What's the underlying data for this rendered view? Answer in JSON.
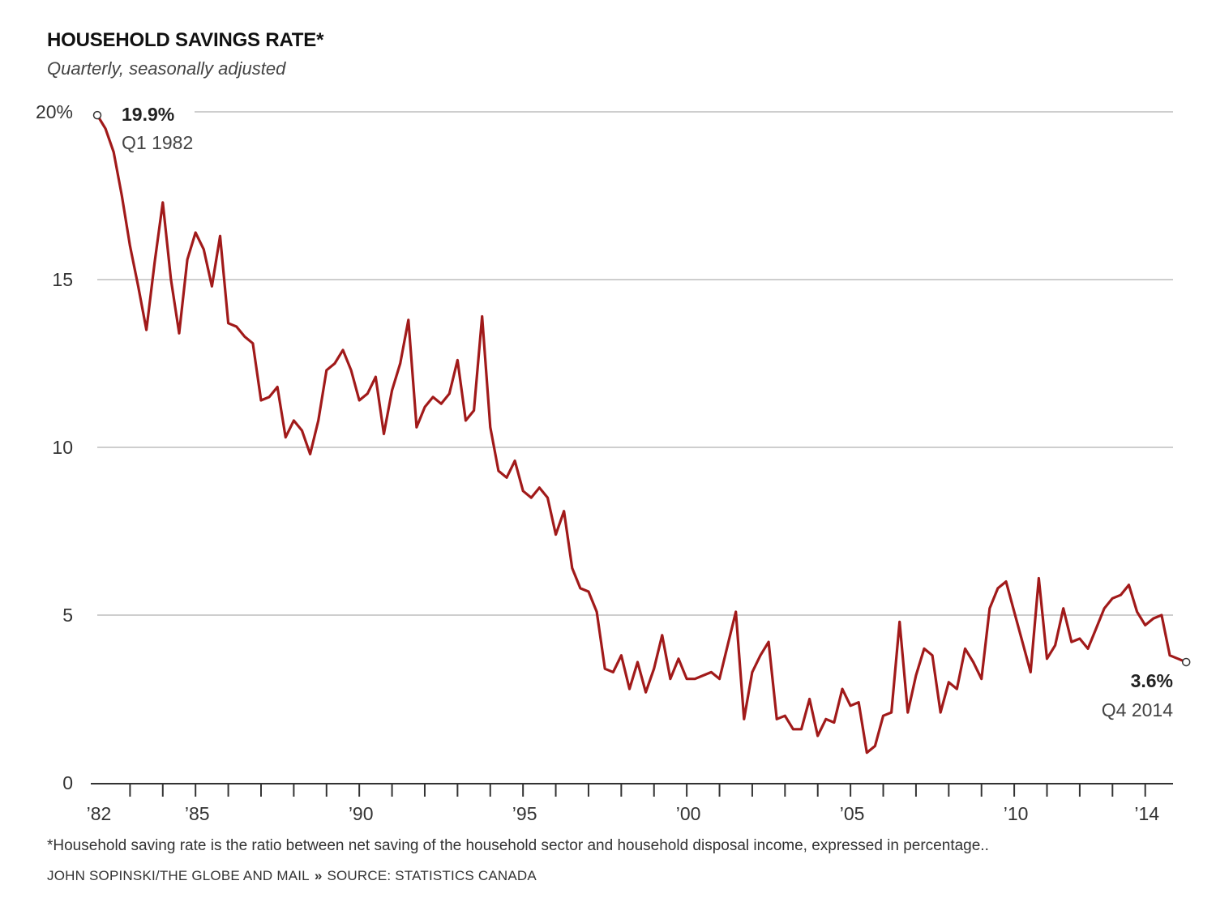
{
  "header": {
    "title": "HOUSEHOLD SAVINGS RATE*",
    "subtitle": "Quarterly, seasonally adjusted"
  },
  "footer": {
    "footnote": "*Household saving rate is the ratio between net saving of the household sector and household disposal income, expressed in percentage..",
    "credit": "JOHN SOPINSKI/THE GLOBE AND MAIL",
    "separator": "»",
    "source": "SOURCE: STATISTICS CANADA"
  },
  "colors": {
    "line": "#a11a1a",
    "grid": "#bdbdbd",
    "axis": "#333333",
    "text": "#333333"
  },
  "chart_data": {
    "type": "line",
    "title": "HOUSEHOLD SAVINGS RATE*",
    "subtitle": "Quarterly, seasonally adjusted",
    "ylim": [
      0,
      20
    ],
    "xlim": [
      1982.0,
      2014.75
    ],
    "y_ticks": [
      {
        "value": 20,
        "label": "20%"
      },
      {
        "value": 15,
        "label": "15"
      },
      {
        "value": 10,
        "label": "10"
      },
      {
        "value": 5,
        "label": "5"
      },
      {
        "value": 0,
        "label": "0"
      }
    ],
    "x_ticks": [
      {
        "value": 1982,
        "label": "’82"
      },
      {
        "value": 1985,
        "label": "’85"
      },
      {
        "value": 1990,
        "label": "’90"
      },
      {
        "value": 1995,
        "label": "’95"
      },
      {
        "value": 2000,
        "label": "’00"
      },
      {
        "value": 2005,
        "label": "’05"
      },
      {
        "value": 2010,
        "label": "’10"
      },
      {
        "value": 2014,
        "label": "’14"
      }
    ],
    "grid": true,
    "annotations": [
      {
        "x": 1982.0,
        "y": 19.9,
        "value": "19.9%",
        "label": "Q1 1982",
        "position": "right"
      },
      {
        "x": 2014.75,
        "y": 3.6,
        "value": "3.6%",
        "label": "Q4 2014",
        "position": "below-left"
      }
    ],
    "series": [
      {
        "x_start": 1982.0,
        "x_step": 0.25,
        "values": [
          19.9,
          19.5,
          18.8,
          17.5,
          16.0,
          14.8,
          13.5,
          15.5,
          17.3,
          15.0,
          13.4,
          15.6,
          16.4,
          15.9,
          14.8,
          16.3,
          13.7,
          13.6,
          13.3,
          13.1,
          11.4,
          11.5,
          11.8,
          10.3,
          10.8,
          10.5,
          9.8,
          10.8,
          12.3,
          12.5,
          12.9,
          12.3,
          11.4,
          11.6,
          12.1,
          10.4,
          11.7,
          12.5,
          13.8,
          10.6,
          11.2,
          11.5,
          11.3,
          11.6,
          12.6,
          10.8,
          11.1,
          13.9,
          10.6,
          9.3,
          9.1,
          9.6,
          8.7,
          8.5,
          8.8,
          8.5,
          7.4,
          8.1,
          6.4,
          5.8,
          5.7,
          5.1,
          3.4,
          3.3,
          3.8,
          2.8,
          3.6,
          2.7,
          3.4,
          4.4,
          3.1,
          3.7,
          3.1,
          3.1,
          3.2,
          3.3,
          3.1,
          4.1,
          5.1,
          1.9,
          3.3,
          3.8,
          4.2,
          1.9,
          2.0,
          1.6,
          1.6,
          2.5,
          1.4,
          1.9,
          1.8,
          2.8,
          2.3,
          2.4,
          0.9,
          1.1,
          2.0,
          2.1,
          4.8,
          2.1,
          3.2,
          4.0,
          3.8,
          2.1,
          3.0,
          2.8,
          4.0,
          3.6,
          3.1,
          5.2,
          5.8,
          6.0,
          5.1,
          4.2,
          3.3,
          6.1,
          3.7,
          4.1,
          5.2,
          4.2,
          4.3,
          4.0,
          4.6,
          5.2,
          5.5,
          5.6,
          5.9,
          5.1,
          4.7,
          4.9,
          5.0,
          3.8,
          3.7,
          3.6
        ]
      }
    ]
  }
}
